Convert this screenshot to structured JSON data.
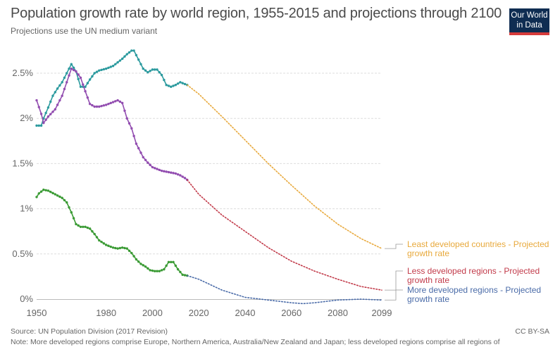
{
  "header": {
    "title": "Population growth rate by world region, 1955-2015 and projections through 2100",
    "subtitle": "Projections use the UN medium variant",
    "logo_line1": "Our World",
    "logo_line2": "in Data",
    "logo_bg": "#0f2d52",
    "logo_accent": "#d63b3b"
  },
  "footer": {
    "source": "Source: UN Population Division (2017 Revision)",
    "license": "CC BY-SA",
    "note": "Note: More developed regions comprise Europe, Northern America, Australia/New Zealand and Japan; less developed regions comprise all regions of"
  },
  "chart_data": {
    "type": "line",
    "title": "Population growth rate by world region, 1955-2015 and projections through 2100",
    "subtitle": "Projections use the UN medium variant",
    "x_ticks": [
      "1950",
      "1980",
      "2000",
      "2020",
      "2040",
      "2060",
      "2080",
      "2099"
    ],
    "y_ticks": [
      "0%",
      "0.5%",
      "1%",
      "1.5%",
      "2%",
      "2.5%"
    ],
    "xlim": [
      1950,
      2099
    ],
    "ylim": [
      0,
      2.5
    ],
    "grid": true,
    "legend_placement": "right",
    "series": [
      {
        "color": "#2b9a9e",
        "style": "solid-markers",
        "x": [
          1950,
          1952,
          1953,
          1955,
          1957,
          1959,
          1961,
          1963,
          1965,
          1967,
          1969,
          1971,
          1973,
          1975,
          1977,
          1980,
          1983,
          1985,
          1987,
          1989,
          1991,
          1992,
          1994,
          1996,
          1998,
          2000,
          2002,
          2004,
          2006,
          2008,
          2010,
          2012,
          2014,
          2015
        ],
        "y": [
          1.92,
          1.92,
          2.0,
          2.12,
          2.25,
          2.33,
          2.4,
          2.5,
          2.6,
          2.52,
          2.35,
          2.35,
          2.43,
          2.5,
          2.53,
          2.55,
          2.58,
          2.62,
          2.66,
          2.71,
          2.75,
          2.75,
          2.65,
          2.55,
          2.51,
          2.54,
          2.54,
          2.48,
          2.37,
          2.35,
          2.37,
          2.4,
          2.38,
          2.37
        ]
      },
      {
        "color": "#924db0",
        "style": "solid-markers",
        "x": [
          1950,
          1952,
          1953,
          1955,
          1958,
          1961,
          1963,
          1965,
          1967,
          1969,
          1971,
          1973,
          1975,
          1977,
          1980,
          1983,
          1985,
          1987,
          1989,
          1991,
          1993,
          1996,
          1998,
          2000,
          2002,
          2004,
          2006,
          2008,
          2010,
          2012,
          2014,
          2015
        ],
        "y": [
          2.2,
          2.05,
          1.95,
          2.02,
          2.1,
          2.25,
          2.4,
          2.55,
          2.52,
          2.45,
          2.3,
          2.16,
          2.13,
          2.13,
          2.15,
          2.18,
          2.2,
          2.17,
          2.0,
          1.89,
          1.72,
          1.57,
          1.51,
          1.46,
          1.44,
          1.42,
          1.41,
          1.4,
          1.39,
          1.37,
          1.34,
          1.32
        ]
      },
      {
        "color": "#3b9b35",
        "style": "solid-markers",
        "x": [
          1950,
          1951,
          1953,
          1955,
          1958,
          1961,
          1963,
          1965,
          1967,
          1969,
          1971,
          1973,
          1975,
          1977,
          1980,
          1983,
          1985,
          1987,
          1989,
          1991,
          1993,
          1995,
          1997,
          1999,
          2001,
          2003,
          2005,
          2007,
          2009,
          2011,
          2013,
          2015
        ],
        "y": [
          1.13,
          1.17,
          1.21,
          1.2,
          1.16,
          1.12,
          1.07,
          0.96,
          0.83,
          0.8,
          0.8,
          0.78,
          0.72,
          0.65,
          0.6,
          0.57,
          0.56,
          0.57,
          0.56,
          0.51,
          0.44,
          0.39,
          0.36,
          0.32,
          0.31,
          0.31,
          0.33,
          0.41,
          0.41,
          0.33,
          0.27,
          0.26
        ]
      },
      {
        "name": "Least developed countries - Projected growth rate",
        "color": "#e8a93c",
        "style": "dotted",
        "x": [
          2015,
          2020,
          2030,
          2040,
          2050,
          2060,
          2070,
          2080,
          2090,
          2099
        ],
        "y": [
          2.37,
          2.27,
          2.02,
          1.76,
          1.5,
          1.26,
          1.03,
          0.83,
          0.67,
          0.56
        ]
      },
      {
        "name": "Less developed regions - Projected growth rate",
        "color": "#c23b4a",
        "style": "dotted",
        "x": [
          2015,
          2020,
          2030,
          2040,
          2050,
          2060,
          2070,
          2080,
          2090,
          2099
        ],
        "y": [
          1.32,
          1.16,
          0.93,
          0.75,
          0.57,
          0.42,
          0.31,
          0.22,
          0.14,
          0.1
        ]
      },
      {
        "name": "More developed regions - Projected growth rate",
        "color": "#4a6ba8",
        "style": "dotted",
        "x": [
          2015,
          2020,
          2030,
          2040,
          2050,
          2060,
          2065,
          2070,
          2080,
          2090,
          2099
        ],
        "y": [
          0.26,
          0.22,
          0.1,
          0.02,
          -0.01,
          -0.04,
          -0.05,
          -0.04,
          -0.01,
          0.0,
          -0.01
        ]
      }
    ]
  }
}
